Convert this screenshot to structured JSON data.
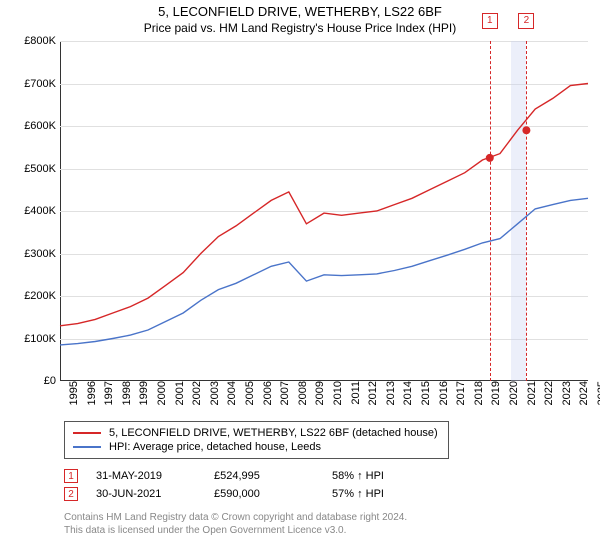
{
  "title": "5, LECONFIELD DRIVE, WETHERBY, LS22 6BF",
  "subtitle": "Price paid vs. HM Land Registry's House Price Index (HPI)",
  "chart": {
    "type": "line",
    "background_color": "#ffffff",
    "grid_color": "#e0e0e0",
    "axis_color": "#333333",
    "x": {
      "min": 1995,
      "max": 2025,
      "ticks": [
        1995,
        1996,
        1997,
        1998,
        1999,
        2000,
        2001,
        2002,
        2003,
        2004,
        2005,
        2006,
        2007,
        2008,
        2009,
        2010,
        2011,
        2012,
        2013,
        2014,
        2015,
        2016,
        2017,
        2018,
        2019,
        2020,
        2021,
        2022,
        2023,
        2024,
        2025
      ],
      "label_rotation": -90,
      "label_fontsize": 11
    },
    "y": {
      "min": 0,
      "max": 800,
      "ticks": [
        0,
        100,
        200,
        300,
        400,
        500,
        600,
        700,
        800
      ],
      "tick_labels": [
        "£0",
        "£100K",
        "£200K",
        "£300K",
        "£400K",
        "£500K",
        "£600K",
        "£700K",
        "£800K"
      ],
      "label_fontsize": 11
    },
    "series": [
      {
        "id": "property",
        "label": "5, LECONFIELD DRIVE, WETHERBY, LS22 6BF (detached house)",
        "color": "#d62728",
        "line_width": 1.4,
        "data_x": [
          1995,
          1996,
          1997,
          1998,
          1999,
          2000,
          2001,
          2002,
          2003,
          2004,
          2005,
          2006,
          2007,
          2008,
          2009,
          2010,
          2011,
          2012,
          2013,
          2014,
          2015,
          2016,
          2017,
          2018,
          2019,
          2020,
          2021,
          2022,
          2023,
          2024,
          2025
        ],
        "data_y": [
          130,
          135,
          145,
          160,
          175,
          195,
          225,
          255,
          300,
          340,
          365,
          395,
          425,
          445,
          370,
          395,
          390,
          395,
          400,
          415,
          430,
          450,
          470,
          490,
          520,
          535,
          590,
          640,
          665,
          695,
          700
        ]
      },
      {
        "id": "hpi",
        "label": "HPI: Average price, detached house, Leeds",
        "color": "#4a74c9",
        "line_width": 1.2,
        "data_x": [
          1995,
          1996,
          1997,
          1998,
          1999,
          2000,
          2001,
          2002,
          2003,
          2004,
          2005,
          2006,
          2007,
          2008,
          2009,
          2010,
          2011,
          2012,
          2013,
          2014,
          2015,
          2016,
          2017,
          2018,
          2019,
          2020,
          2021,
          2022,
          2023,
          2024,
          2025
        ],
        "data_y": [
          85,
          88,
          93,
          100,
          108,
          120,
          140,
          160,
          190,
          215,
          230,
          250,
          270,
          280,
          235,
          250,
          248,
          250,
          252,
          260,
          270,
          283,
          296,
          310,
          325,
          335,
          370,
          405,
          415,
          425,
          430
        ]
      }
    ],
    "sale_markers": [
      {
        "n": "1",
        "x": 2019.42,
        "y": 525,
        "date": "31-MAY-2019",
        "price": "£524,995",
        "delta": "58% ↑ HPI",
        "color": "#d62728",
        "dot_radius": 4
      },
      {
        "n": "2",
        "x": 2021.5,
        "y": 590,
        "date": "30-JUN-2021",
        "price": "£590,000",
        "delta": "57% ↑ HPI",
        "color": "#d62728",
        "dot_radius": 4,
        "band": {
          "from": 2020.6,
          "to": 2021.5,
          "fill": "rgba(200,210,240,0.35)"
        }
      }
    ]
  },
  "footer": {
    "line1": "Contains HM Land Registry data © Crown copyright and database right 2024.",
    "line2": "This data is licensed under the Open Government Licence v3.0."
  }
}
